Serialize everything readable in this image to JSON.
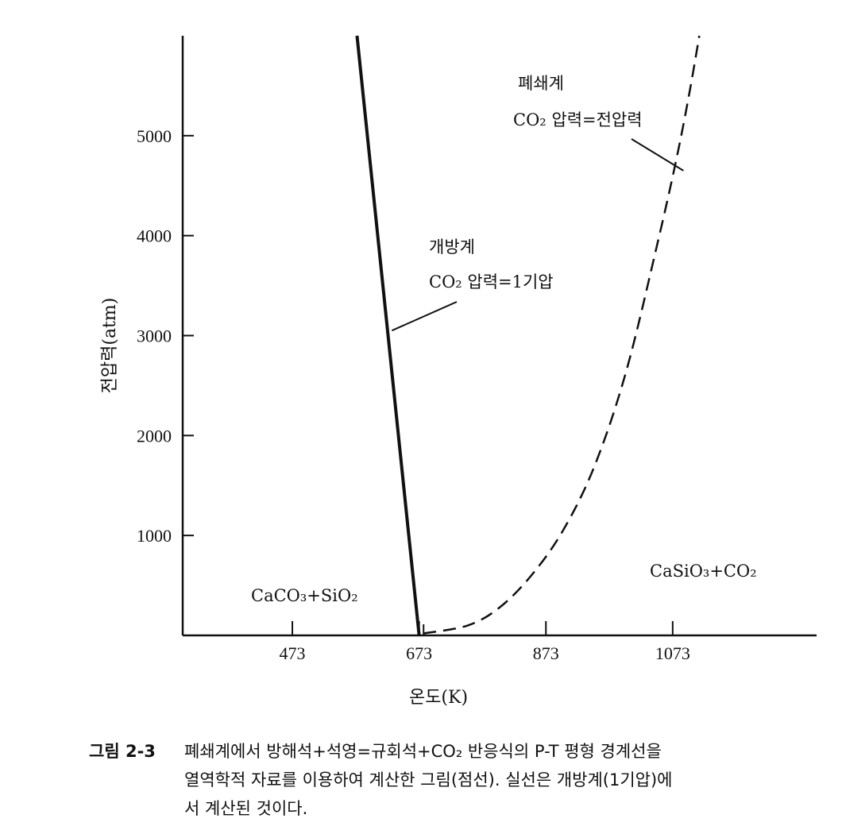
{
  "chart_data": {
    "type": "line",
    "xlabel": "온도(K)",
    "ylabel": "전압력(atm)",
    "xlim": [
      300,
      1300
    ],
    "ylim": [
      0,
      6000
    ],
    "x_ticks": [
      473,
      673,
      873,
      1073
    ],
    "y_ticks": [
      1000,
      2000,
      3000,
      4000,
      5000
    ],
    "series": [
      {
        "style": "solid",
        "x": [
          673,
          575
        ],
        "y": [
          0,
          6000
        ]
      },
      {
        "style": "dashed",
        "x": [
          680,
          750,
          800,
          850,
          900,
          950,
          1000,
          1050,
          1080,
          1100,
          1115
        ],
        "y": [
          20,
          100,
          280,
          600,
          1050,
          1700,
          2650,
          3950,
          4800,
          5450,
          6000
        ]
      }
    ],
    "annotations": [
      {
        "lines": [
          "개방계",
          "CO₂ 압력=1기압"
        ],
        "pointer": [
          {
            "x": 633,
            "y": 3950
          },
          {
            "x": 630,
            "y": 3050
          }
        ],
        "target": [
          {
            "x": 630,
            "y": 3050
          }
        ]
      },
      {
        "lines": [
          "폐쇄계",
          "CO₂ 압력=전압력"
        ],
        "target": [
          {
            "x": 1090,
            "y": 4650
          }
        ]
      },
      {
        "lines": [
          "CaCO₃+SiO₂"
        ]
      },
      {
        "lines": [
          "CaSiO₃+CO₂"
        ]
      }
    ]
  },
  "caption": {
    "number": "그림 2-3",
    "lines": [
      "폐쇄계에서 방해석+석영=규회석+CO₂ 반응식의 P-T 평형 경계선을",
      "열역학적 자료를 이용하여 계산한 그림(점선). 실선은 개방계(1기압)에",
      "서 계산된 것이다."
    ]
  }
}
